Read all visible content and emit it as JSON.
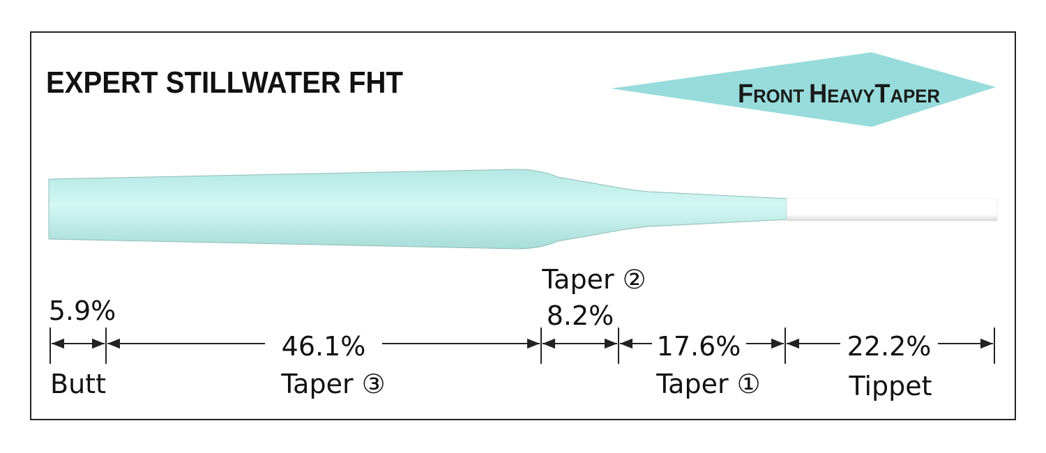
{
  "title": "EXPERT STILLWATER FHT",
  "badge": {
    "first": [
      "F",
      "RONT"
    ],
    "second": [
      "H",
      "EAVY"
    ],
    "third": [
      "T",
      "APER"
    ],
    "color": "#97dcdb"
  },
  "colors": {
    "line": "#c9f2ee",
    "tippet": "#ffffff",
    "frame": "#222222"
  },
  "sections": [
    {
      "name": "Butt",
      "percent": "5.9%"
    },
    {
      "name": "Taper ③",
      "percent": "46.1%"
    },
    {
      "name": "Taper ②",
      "percent": "8.2%"
    },
    {
      "name": "Taper ①",
      "percent": "17.6%"
    },
    {
      "name": "Tippet",
      "percent": "22.2%"
    }
  ]
}
